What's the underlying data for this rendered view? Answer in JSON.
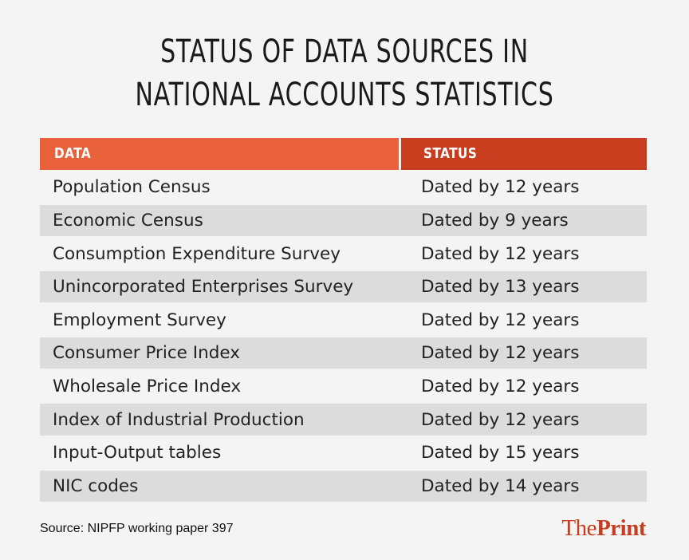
{
  "title": {
    "line1": "STATUS OF DATA SOURCES IN",
    "line2": "NATIONAL ACCOUNTS STATISTICS"
  },
  "table": {
    "headers": [
      "DATA",
      "STATUS"
    ],
    "rows": [
      {
        "data": "Population Census",
        "status": "Dated by 12 years"
      },
      {
        "data": "Economic Census",
        "status": "Dated by 9 years"
      },
      {
        "data": "Consumption Expenditure Survey",
        "status": "Dated by 12 years"
      },
      {
        "data": "Unincorporated Enterprises Survey",
        "status": "Dated by 13 years"
      },
      {
        "data": "Employment Survey",
        "status": "Dated by 12 years"
      },
      {
        "data": "Consumer Price Index",
        "status": "Dated by 12 years"
      },
      {
        "data": "Wholesale Price Index",
        "status": "Dated by 12 years"
      },
      {
        "data": "Index of Industrial Production",
        "status": "Dated by 12 years"
      },
      {
        "data": "Input-Output tables",
        "status": "Dated by 15 years"
      },
      {
        "data": "NIC codes",
        "status": "Dated by 14 years"
      }
    ]
  },
  "source": "Source: NIPFP working paper 397",
  "logo": {
    "the": "The",
    "print": "Print"
  },
  "colors": {
    "header_data": "#e8613a",
    "header_status": "#c93d1f",
    "row_shade": "#dcdcdc",
    "background": "#f4f4f4"
  }
}
